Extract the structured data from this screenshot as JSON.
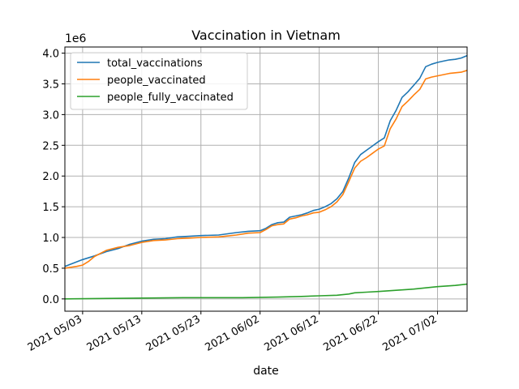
{
  "chart_data": {
    "type": "line",
    "title": "Vaccination in Vietnam",
    "xlabel": "date",
    "ylabel": "",
    "y_offset_label": "1e6",
    "x_ticks": [
      {
        "date": "2021-05-03",
        "label": "2021 05/03"
      },
      {
        "date": "2021-05-13",
        "label": "2021 05/13"
      },
      {
        "date": "2021-05-23",
        "label": "2021 05/23"
      },
      {
        "date": "2021-06-02",
        "label": "2021 06/02"
      },
      {
        "date": "2021-06-12",
        "label": "2021 06/12"
      },
      {
        "date": "2021-06-22",
        "label": "2021 06/22"
      },
      {
        "date": "2021-07-02",
        "label": "2021 07/02"
      }
    ],
    "y_ticks": [
      {
        "value": 0.0,
        "label": "0.0"
      },
      {
        "value": 0.5,
        "label": "0.5"
      },
      {
        "value": 1.0,
        "label": "1.0"
      },
      {
        "value": 1.5,
        "label": "1.5"
      },
      {
        "value": 2.0,
        "label": "2.0"
      },
      {
        "value": 2.5,
        "label": "2.5"
      },
      {
        "value": 3.0,
        "label": "3.0"
      },
      {
        "value": 3.5,
        "label": "3.5"
      },
      {
        "value": 4.0,
        "label": "4.0"
      }
    ],
    "xlim": [
      "2021-04-30",
      "2021-07-07"
    ],
    "ylim": [
      -0.2,
      4.1
    ],
    "grid": true,
    "legend_position": "top-left",
    "series": [
      {
        "name": "total_vaccinations",
        "color": "#1f77b4",
        "points": [
          [
            "2021-04-30",
            0.53
          ],
          [
            "2021-05-03",
            0.64
          ],
          [
            "2021-05-05",
            0.7
          ],
          [
            "2021-05-07",
            0.77
          ],
          [
            "2021-05-09",
            0.82
          ],
          [
            "2021-05-11",
            0.89
          ],
          [
            "2021-05-13",
            0.94
          ],
          [
            "2021-05-15",
            0.97
          ],
          [
            "2021-05-17",
            0.98
          ],
          [
            "2021-05-19",
            1.01
          ],
          [
            "2021-05-21",
            1.02
          ],
          [
            "2021-05-23",
            1.03
          ],
          [
            "2021-05-26",
            1.04
          ],
          [
            "2021-05-29",
            1.08
          ],
          [
            "2021-05-31",
            1.1
          ],
          [
            "2021-06-02",
            1.11
          ],
          [
            "2021-06-03",
            1.15
          ],
          [
            "2021-06-04",
            1.21
          ],
          [
            "2021-06-05",
            1.24
          ],
          [
            "2021-06-06",
            1.25
          ],
          [
            "2021-06-07",
            1.33
          ],
          [
            "2021-06-08",
            1.35
          ],
          [
            "2021-06-09",
            1.37
          ],
          [
            "2021-06-10",
            1.4
          ],
          [
            "2021-06-11",
            1.44
          ],
          [
            "2021-06-12",
            1.46
          ],
          [
            "2021-06-13",
            1.5
          ],
          [
            "2021-06-14",
            1.55
          ],
          [
            "2021-06-15",
            1.63
          ],
          [
            "2021-06-16",
            1.75
          ],
          [
            "2021-06-17",
            1.97
          ],
          [
            "2021-06-18",
            2.22
          ],
          [
            "2021-06-19",
            2.35
          ],
          [
            "2021-06-20",
            2.42
          ],
          [
            "2021-06-21",
            2.49
          ],
          [
            "2021-06-22",
            2.56
          ],
          [
            "2021-06-23",
            2.62
          ],
          [
            "2021-06-24",
            2.9
          ],
          [
            "2021-06-25",
            3.07
          ],
          [
            "2021-06-26",
            3.28
          ],
          [
            "2021-06-27",
            3.37
          ],
          [
            "2021-06-28",
            3.48
          ],
          [
            "2021-06-29",
            3.59
          ],
          [
            "2021-06-30",
            3.78
          ],
          [
            "2021-07-01",
            3.82
          ],
          [
            "2021-07-02",
            3.85
          ],
          [
            "2021-07-03",
            3.87
          ],
          [
            "2021-07-04",
            3.89
          ],
          [
            "2021-07-05",
            3.9
          ],
          [
            "2021-07-06",
            3.92
          ],
          [
            "2021-07-07",
            3.96
          ]
        ]
      },
      {
        "name": "people_vaccinated",
        "color": "#ff7f0e",
        "points": [
          [
            "2021-04-30",
            0.5
          ],
          [
            "2021-05-02",
            0.53
          ],
          [
            "2021-05-03",
            0.55
          ],
          [
            "2021-05-04",
            0.61
          ],
          [
            "2021-05-05",
            0.69
          ],
          [
            "2021-05-07",
            0.79
          ],
          [
            "2021-05-09",
            0.84
          ],
          [
            "2021-05-11",
            0.87
          ],
          [
            "2021-05-13",
            0.92
          ],
          [
            "2021-05-15",
            0.95
          ],
          [
            "2021-05-17",
            0.96
          ],
          [
            "2021-05-19",
            0.98
          ],
          [
            "2021-05-21",
            0.99
          ],
          [
            "2021-05-23",
            1.0
          ],
          [
            "2021-05-26",
            1.01
          ],
          [
            "2021-05-29",
            1.04
          ],
          [
            "2021-05-31",
            1.07
          ],
          [
            "2021-06-02",
            1.08
          ],
          [
            "2021-06-03",
            1.13
          ],
          [
            "2021-06-04",
            1.19
          ],
          [
            "2021-06-05",
            1.21
          ],
          [
            "2021-06-06",
            1.22
          ],
          [
            "2021-06-07",
            1.3
          ],
          [
            "2021-06-08",
            1.32
          ],
          [
            "2021-06-09",
            1.35
          ],
          [
            "2021-06-10",
            1.37
          ],
          [
            "2021-06-11",
            1.4
          ],
          [
            "2021-06-12",
            1.41
          ],
          [
            "2021-06-13",
            1.45
          ],
          [
            "2021-06-14",
            1.5
          ],
          [
            "2021-06-15",
            1.58
          ],
          [
            "2021-06-16",
            1.7
          ],
          [
            "2021-06-17",
            1.91
          ],
          [
            "2021-06-18",
            2.13
          ],
          [
            "2021-06-19",
            2.24
          ],
          [
            "2021-06-20",
            2.3
          ],
          [
            "2021-06-21",
            2.37
          ],
          [
            "2021-06-22",
            2.44
          ],
          [
            "2021-06-23",
            2.49
          ],
          [
            "2021-06-24",
            2.77
          ],
          [
            "2021-06-25",
            2.93
          ],
          [
            "2021-06-26",
            3.13
          ],
          [
            "2021-06-27",
            3.22
          ],
          [
            "2021-06-28",
            3.32
          ],
          [
            "2021-06-29",
            3.41
          ],
          [
            "2021-06-30",
            3.58
          ],
          [
            "2021-07-01",
            3.61
          ],
          [
            "2021-07-02",
            3.63
          ],
          [
            "2021-07-03",
            3.65
          ],
          [
            "2021-07-04",
            3.67
          ],
          [
            "2021-07-05",
            3.68
          ],
          [
            "2021-07-06",
            3.69
          ],
          [
            "2021-07-07",
            3.72
          ]
        ]
      },
      {
        "name": "people_fully_vaccinated",
        "color": "#2ca02c",
        "points": [
          [
            "2021-04-30",
            0.0
          ],
          [
            "2021-05-10",
            0.01
          ],
          [
            "2021-05-20",
            0.02
          ],
          [
            "2021-05-30",
            0.02
          ],
          [
            "2021-06-05",
            0.03
          ],
          [
            "2021-06-09",
            0.04
          ],
          [
            "2021-06-12",
            0.05
          ],
          [
            "2021-06-15",
            0.06
          ],
          [
            "2021-06-17",
            0.08
          ],
          [
            "2021-06-18",
            0.1
          ],
          [
            "2021-06-20",
            0.11
          ],
          [
            "2021-06-22",
            0.12
          ],
          [
            "2021-06-25",
            0.14
          ],
          [
            "2021-06-28",
            0.16
          ],
          [
            "2021-06-30",
            0.18
          ],
          [
            "2021-07-02",
            0.2
          ],
          [
            "2021-07-05",
            0.22
          ],
          [
            "2021-07-07",
            0.24
          ]
        ]
      }
    ]
  }
}
